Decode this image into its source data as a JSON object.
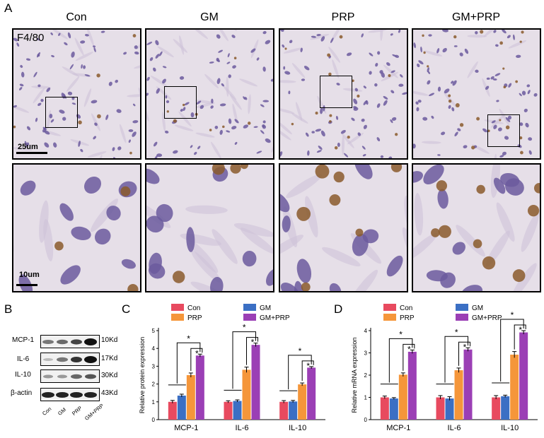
{
  "panel_labels": {
    "a": "A",
    "b": "B",
    "c": "C",
    "d": "D"
  },
  "groups": [
    "Con",
    "GM",
    "PRP",
    "GM+PRP"
  ],
  "stain_label": "F4/80",
  "scale_bars": {
    "top": "25um",
    "bottom": "10um"
  },
  "colors": {
    "con": "#e84a5f",
    "gm": "#3b6fc4",
    "prp": "#f5963a",
    "gm_prp": "#9b3fb5",
    "tissue": "#e6dfe8",
    "nucleus": "#6b5a9e",
    "brown": "#8a5a2b"
  },
  "western_blot": {
    "proteins": [
      {
        "name": "MCP-1",
        "kd": "10Kd"
      },
      {
        "name": "IL-6",
        "kd": "17Kd"
      },
      {
        "name": "IL-10",
        "kd": "30Kd"
      },
      {
        "name": "β-actin",
        "kd": "43Kd"
      }
    ],
    "lanes": [
      "Con",
      "GM",
      "PRP",
      "GM+PRP"
    ]
  },
  "chart_data": [
    {
      "type": "bar",
      "panel": "C",
      "categories": [
        "MCP-1",
        "IL-6",
        "IL-10"
      ],
      "ylabel": "Relative protein expression",
      "ylim": [
        0,
        5
      ],
      "yticks": [
        0,
        1,
        2,
        3,
        4,
        5
      ],
      "legend": [
        "Con",
        "GM",
        "PRP",
        "GM+PRP"
      ],
      "series": [
        {
          "name": "Con",
          "values": [
            1.0,
            1.0,
            1.0
          ],
          "errors": [
            0.08,
            0.06,
            0.07
          ]
        },
        {
          "name": "GM",
          "values": [
            1.35,
            1.05,
            1.02
          ],
          "errors": [
            0.08,
            0.06,
            0.06
          ]
        },
        {
          "name": "PRP",
          "values": [
            2.5,
            2.8,
            1.98
          ],
          "errors": [
            0.12,
            0.15,
            0.08
          ]
        },
        {
          "name": "GM+PRP",
          "values": [
            3.6,
            4.2,
            2.92
          ],
          "errors": [
            0.08,
            0.1,
            0.06
          ]
        }
      ],
      "significance": [
        "*",
        "*",
        "*",
        "*",
        "*",
        "*"
      ]
    },
    {
      "type": "bar",
      "panel": "D",
      "categories": [
        "MCP-1",
        "IL-6",
        "IL-10"
      ],
      "ylabel": "Relative mRNA expression",
      "ylim": [
        0,
        4
      ],
      "yticks": [
        0,
        1,
        2,
        3,
        4
      ],
      "legend": [
        "Con",
        "GM",
        "PRP",
        "GM+PRP"
      ],
      "series": [
        {
          "name": "Con",
          "values": [
            1.0,
            1.0,
            1.0
          ],
          "errors": [
            0.06,
            0.08,
            0.08
          ]
        },
        {
          "name": "GM",
          "values": [
            0.95,
            0.95,
            1.05
          ],
          "errors": [
            0.04,
            0.08,
            0.05
          ]
        },
        {
          "name": "PRP",
          "values": [
            2.02,
            2.22,
            2.92
          ],
          "errors": [
            0.08,
            0.1,
            0.14
          ]
        },
        {
          "name": "GM+PRP",
          "values": [
            3.05,
            3.15,
            3.92
          ],
          "errors": [
            0.08,
            0.08,
            0.08
          ]
        }
      ],
      "significance": [
        "*",
        "*",
        "*",
        "*",
        "*",
        "*"
      ]
    }
  ]
}
